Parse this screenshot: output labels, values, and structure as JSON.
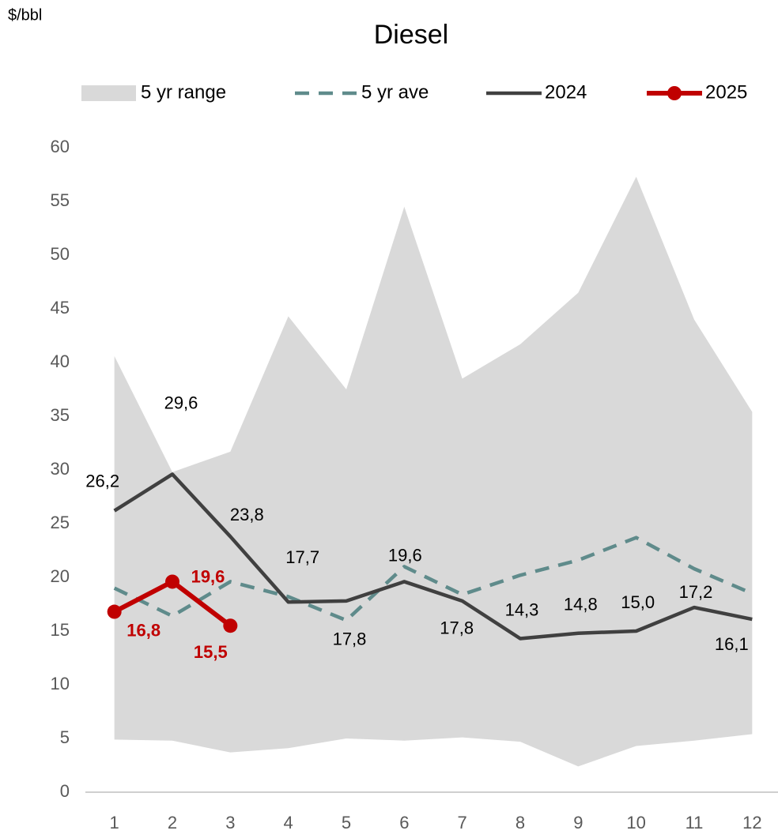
{
  "chart_data": {
    "type": "line",
    "title": "Diesel",
    "y_axis_label": "$/bbl",
    "categories": [
      "1",
      "2",
      "3",
      "4",
      "5",
      "6",
      "7",
      "8",
      "9",
      "10",
      "11",
      "12"
    ],
    "ylim": [
      0,
      60
    ],
    "yticks": [
      0,
      5,
      10,
      15,
      20,
      25,
      30,
      35,
      40,
      45,
      50,
      55,
      60
    ],
    "grid": false,
    "legend": "top",
    "range": {
      "name": "5 yr range",
      "color": "#d9d9d9",
      "high": [
        40.6,
        29.8,
        31.7,
        44.3,
        37.5,
        54.5,
        38.5,
        41.7,
        46.5,
        57.3,
        44.0,
        35.4
      ],
      "low": [
        4.9,
        4.8,
        3.7,
        4.1,
        5.0,
        4.8,
        5.1,
        4.7,
        2.4,
        4.3,
        4.8,
        5.4
      ]
    },
    "series": [
      {
        "name": "5 yr ave",
        "color": "#5f8b8b",
        "dashed": true,
        "values": [
          19.0,
          16.4,
          19.6,
          18.2,
          16.0,
          21.0,
          18.4,
          20.2,
          21.6,
          23.7,
          20.8,
          18.5
        ]
      },
      {
        "name": "2024",
        "color": "#404040",
        "values": [
          26.2,
          29.6,
          23.8,
          17.7,
          17.8,
          19.6,
          17.8,
          14.3,
          14.8,
          15.0,
          17.2,
          16.1
        ],
        "value_labels": [
          "26,2",
          "29,6",
          "23,8",
          "17,7",
          "17,8",
          "19,6",
          "17,8",
          "14,3",
          "14,8",
          "15,0",
          "17,2",
          "16,1"
        ]
      },
      {
        "name": "2025",
        "color": "#c00000",
        "markers": true,
        "bold_labels": true,
        "values": [
          16.8,
          19.6,
          15.5,
          null,
          null,
          null,
          null,
          null,
          null,
          null,
          null,
          null
        ],
        "value_labels": [
          "16,8",
          "19,6",
          "15,5",
          null,
          null,
          null,
          null,
          null,
          null,
          null,
          null,
          null
        ]
      }
    ]
  }
}
